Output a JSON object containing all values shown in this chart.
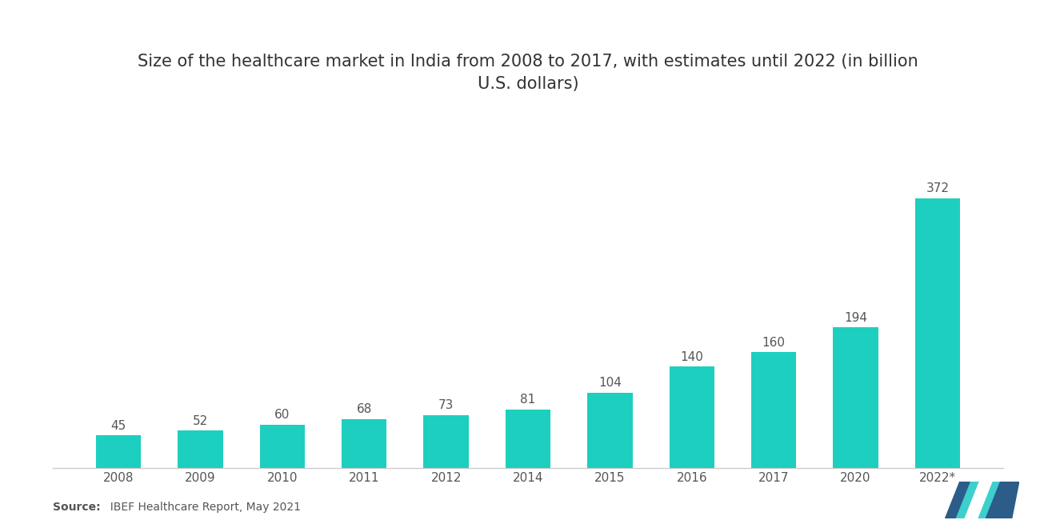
{
  "title": "Size of the healthcare market in India from 2008 to 2017, with estimates until 2022 (in billion\nU.S. dollars)",
  "categories": [
    "2008",
    "2009",
    "2010",
    "2011",
    "2012",
    "2014",
    "2015",
    "2016",
    "2017",
    "2020",
    "2022*"
  ],
  "values": [
    45,
    52,
    60,
    68,
    73,
    81,
    104,
    140,
    160,
    194,
    372
  ],
  "bar_color": "#1DCFBF",
  "background_color": "#ffffff",
  "title_fontsize": 15,
  "label_fontsize": 11,
  "tick_fontsize": 11,
  "source_bold": "Source:",
  "source_rest": "  IBEF Healthcare Report, May 2021",
  "ylim": [
    0,
    440
  ]
}
